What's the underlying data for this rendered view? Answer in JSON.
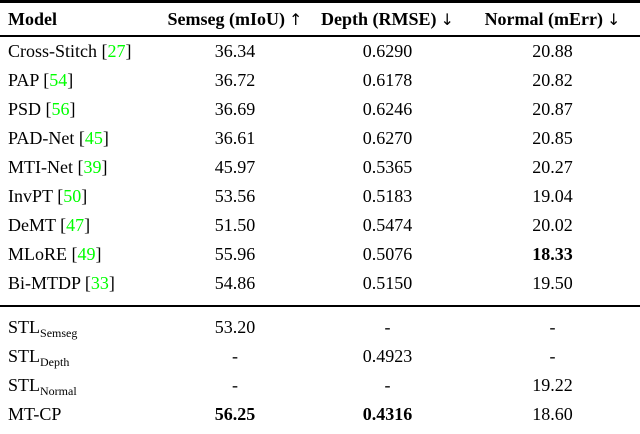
{
  "page": {
    "background": "#ffffff",
    "text_color": "#000000",
    "citation_color": "#00ff00"
  },
  "table": {
    "columns": [
      {
        "label": "Model",
        "arrow": ""
      },
      {
        "label": "Semseg (mIoU)",
        "arrow": "↑"
      },
      {
        "label": "Depth (RMSE)",
        "arrow": "↓"
      },
      {
        "label": "Normal (mErr)",
        "arrow": "↓"
      }
    ],
    "rows": [
      {
        "model": "Cross-Stitch",
        "cite": "27",
        "semseg": "36.34",
        "depth": "0.6290",
        "normal": "20.88"
      },
      {
        "model": "PAP",
        "cite": "54",
        "semseg": "36.72",
        "depth": "0.6178",
        "normal": "20.82"
      },
      {
        "model": "PSD",
        "cite": "56",
        "semseg": "36.69",
        "depth": "0.6246",
        "normal": "20.87"
      },
      {
        "model": "PAD-Net",
        "cite": "45",
        "semseg": "36.61",
        "depth": "0.6270",
        "normal": "20.85"
      },
      {
        "model": "MTI-Net",
        "cite": "39",
        "semseg": "45.97",
        "depth": "0.5365",
        "normal": "20.27"
      },
      {
        "model": "InvPT",
        "cite": "50",
        "semseg": "53.56",
        "depth": "0.5183",
        "normal": "19.04"
      },
      {
        "model": "DeMT",
        "cite": "47",
        "semseg": "51.50",
        "depth": "0.5474",
        "normal": "20.02"
      },
      {
        "model": "MLoRE",
        "cite": "49",
        "semseg": "55.96",
        "depth": "0.5076",
        "normal": "18.33",
        "normal_bold": true
      },
      {
        "model": "Bi-MTDP",
        "cite": "33",
        "semseg": "54.86",
        "depth": "0.5150",
        "normal": "19.50",
        "group_end": true
      },
      {
        "model": "STL",
        "subscript": "Semseg",
        "semseg": "53.20",
        "depth": "-",
        "normal": "-",
        "group_start": true
      },
      {
        "model": "STL",
        "subscript": "Depth",
        "semseg": "-",
        "depth": "0.4923",
        "normal": "-"
      },
      {
        "model": "STL",
        "subscript": "Normal",
        "semseg": "-",
        "depth": "-",
        "normal": "19.22"
      },
      {
        "model": "MT-CP",
        "semseg": "56.25",
        "semseg_bold": true,
        "depth": "0.4316",
        "depth_bold": true,
        "normal": "18.60",
        "last": true
      }
    ]
  }
}
